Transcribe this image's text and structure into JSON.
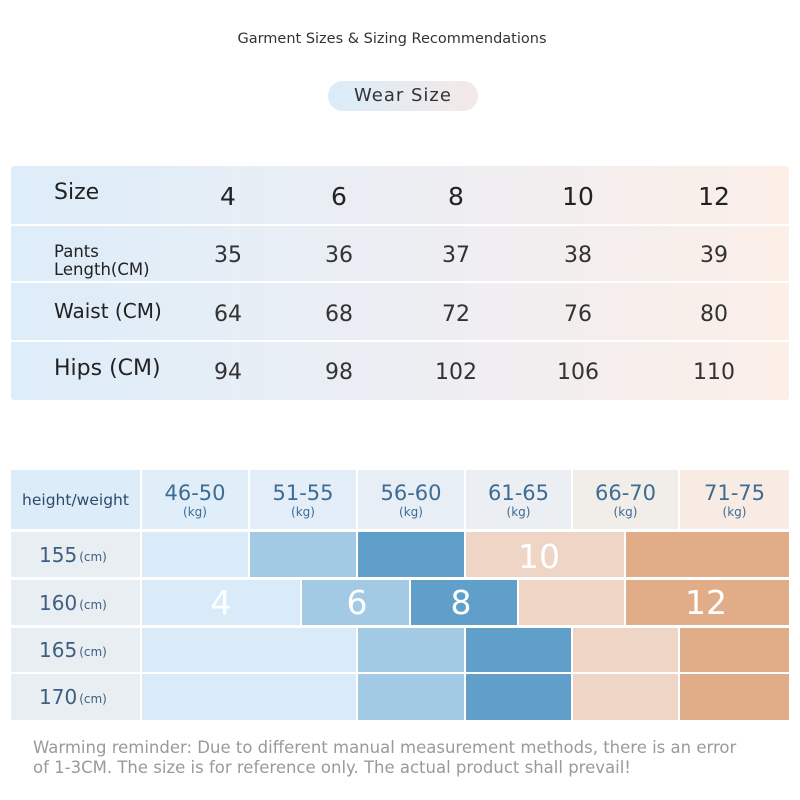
{
  "header": {
    "title": "Garment Sizes & Sizing Recommendations",
    "pill_label": "Wear  Size"
  },
  "size_table": {
    "header_label": "Size",
    "sizes": [
      "4",
      "6",
      "8",
      "10",
      "12"
    ],
    "rows": [
      {
        "label_line1": "Pants",
        "label_line2": "Length(CM)",
        "values": [
          "35",
          "36",
          "37",
          "38",
          "39"
        ]
      },
      {
        "label": "Waist (CM)",
        "values": [
          "64",
          "68",
          "72",
          "76",
          "80"
        ]
      },
      {
        "label": "Hips (CM)",
        "values": [
          "94",
          "98",
          "102",
          "106",
          "110"
        ]
      }
    ]
  },
  "height_weight_chart": {
    "corner_label": "height/weight",
    "weight_ranges": [
      "46-50",
      "51-55",
      "56-60",
      "61-65",
      "66-70",
      "71-75"
    ],
    "weight_unit": "(kg)",
    "height_unit": "(cm)",
    "heights": [
      "155",
      "160",
      "165",
      "170"
    ],
    "size_labels": [
      "4",
      "6",
      "8",
      "10",
      "12"
    ],
    "colors": {
      "size_4": "#d9ebf8",
      "size_6": "#a3cae4",
      "size_8": "#5f9fc9",
      "size_10": "#efd5c6",
      "size_12": "#e0ad88"
    }
  },
  "footer": {
    "reminder_line1": "Warming reminder: Due to different manual measurement methods, there is an error",
    "reminder_line2": "of 1-3CM. The size is for reference only. The actual product shall prevail!"
  }
}
